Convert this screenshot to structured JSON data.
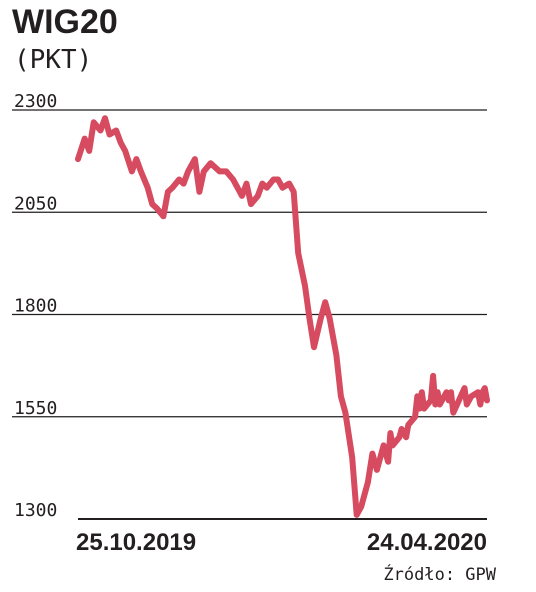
{
  "chart_data": {
    "type": "line",
    "title": "WIG20",
    "subtitle": "(PKT)",
    "source": "Źródło: GPW",
    "ylim": [
      1300,
      2300
    ],
    "yticks": [
      2300,
      2050,
      1800,
      1550,
      1300
    ],
    "x_start_label": "25.10.2019",
    "x_end_label": "24.04.2020",
    "grid": "horizontal",
    "line_color": "#d64b5f",
    "series": [
      {
        "x": [
          "2019-10-25",
          "2019-10-28",
          "2019-10-30",
          "2019-11-01",
          "2019-11-04",
          "2019-11-06",
          "2019-11-08",
          "2019-11-11",
          "2019-11-13",
          "2019-11-15",
          "2019-11-18",
          "2019-11-20",
          "2019-11-22",
          "2019-11-25",
          "2019-11-27",
          "2019-11-29",
          "2019-12-02",
          "2019-12-04",
          "2019-12-06",
          "2019-12-09",
          "2019-12-11",
          "2019-12-13",
          "2019-12-16",
          "2019-12-18",
          "2019-12-20",
          "2019-12-23",
          "2019-12-27",
          "2019-12-30",
          "2020-01-02",
          "2020-01-06",
          "2020-01-08",
          "2020-01-10",
          "2020-01-13",
          "2020-01-15",
          "2020-01-17",
          "2020-01-20",
          "2020-01-22",
          "2020-01-24",
          "2020-01-27",
          "2020-01-29",
          "2020-01-31",
          "2020-02-03",
          "2020-02-05",
          "2020-02-07",
          "2020-02-10",
          "2020-02-12",
          "2020-02-14",
          "2020-02-17",
          "2020-02-19",
          "2020-02-21",
          "2020-02-24",
          "2020-02-26",
          "2020-02-28",
          "2020-03-02",
          "2020-03-04",
          "2020-03-06",
          "2020-03-09",
          "2020-03-11",
          "2020-03-12",
          "2020-03-13",
          "2020-03-16",
          "2020-03-17",
          "2020-03-18",
          "2020-03-19",
          "2020-03-20",
          "2020-03-23",
          "2020-03-24",
          "2020-03-25",
          "2020-03-26",
          "2020-03-27",
          "2020-03-30",
          "2020-03-31",
          "2020-04-01",
          "2020-04-02",
          "2020-04-03",
          "2020-04-06",
          "2020-04-07",
          "2020-04-08",
          "2020-04-09",
          "2020-04-14",
          "2020-04-15",
          "2020-04-16",
          "2020-04-17",
          "2020-04-20",
          "2020-04-21",
          "2020-04-22",
          "2020-04-23",
          "2020-04-24"
        ],
        "values": [
          2180,
          2230,
          2200,
          2270,
          2250,
          2280,
          2240,
          2250,
          2220,
          2200,
          2150,
          2180,
          2150,
          2110,
          2070,
          2060,
          2040,
          2100,
          2110,
          2130,
          2120,
          2150,
          2180,
          2100,
          2150,
          2170,
          2150,
          2150,
          2130,
          2090,
          2120,
          2070,
          2090,
          2120,
          2110,
          2130,
          2130,
          2110,
          2120,
          2100,
          1950,
          1870,
          1790,
          1720,
          1790,
          1830,
          1790,
          1700,
          1600,
          1560,
          1450,
          1310,
          1330,
          1390,
          1460,
          1420,
          1480,
          1440,
          1510,
          1480,
          1500,
          1520,
          1510,
          1500,
          1530,
          1550,
          1600,
          1570,
          1610,
          1570,
          1590,
          1650,
          1580,
          1610,
          1580,
          1610,
          1590,
          1610,
          1560,
          1620,
          1580,
          1590,
          1600,
          1610,
          1580,
          1610,
          1620,
          1590
        ]
      }
    ]
  }
}
